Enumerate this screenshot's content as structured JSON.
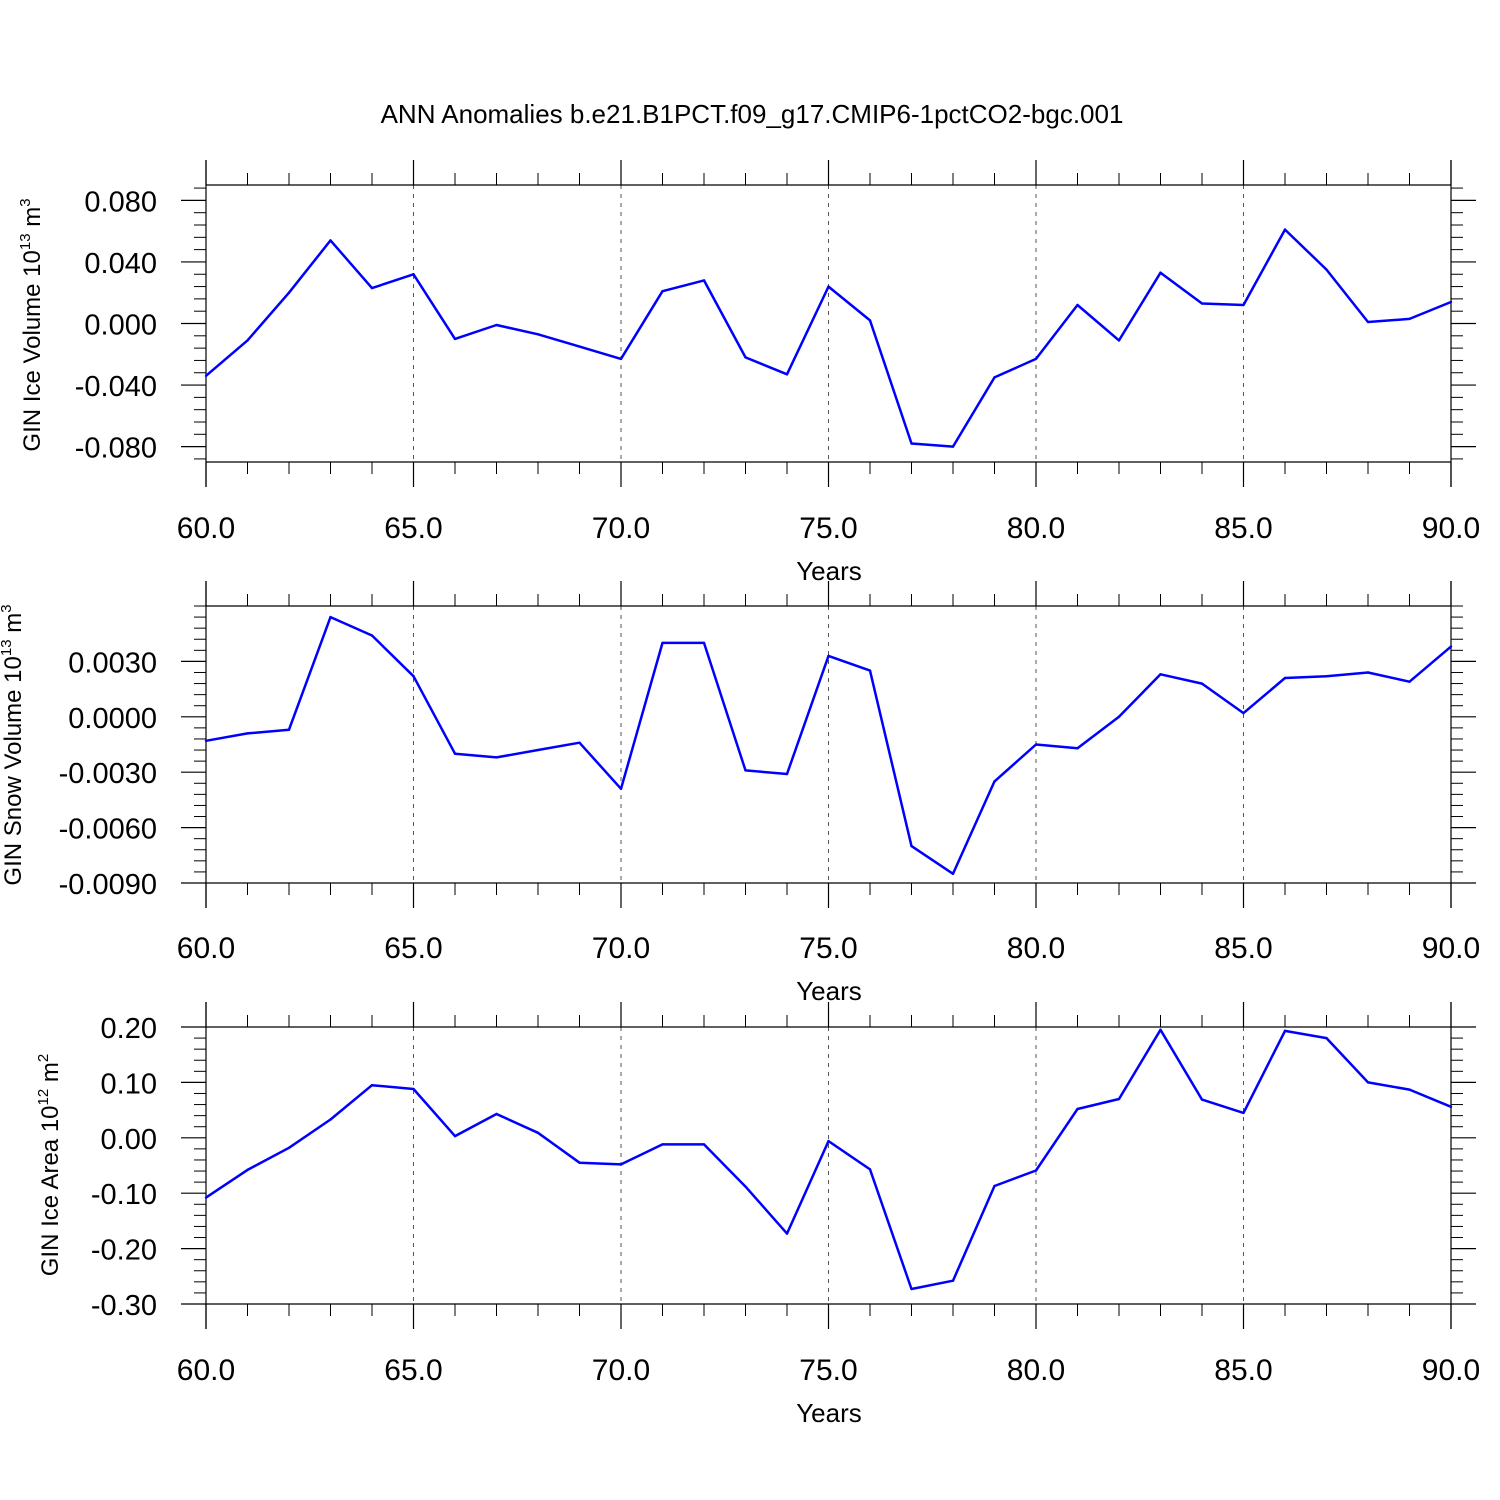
{
  "title": "ANN Anomalies b.e21.B1PCT.f09_g17.CMIP6-1pctCO2-bgc.001",
  "colors": {
    "series": "#0000ff",
    "axis": "#000000",
    "grid": "#555555"
  },
  "chart_data": [
    {
      "type": "line",
      "ylabel": {
        "main": "GIN Ice Volume 10",
        "exp": "13",
        "unit": " m",
        "unit_exp": "3"
      },
      "xlabel": "Years",
      "xlim": [
        60,
        90
      ],
      "ylim": [
        -0.09,
        0.09
      ],
      "xticks": [
        "60.0",
        "65.0",
        "70.0",
        "75.0",
        "80.0",
        "85.0",
        "90.0"
      ],
      "yticks": [
        -0.08,
        -0.04,
        0.0,
        0.04,
        0.08
      ],
      "ytick_labels": [
        "-0.080",
        "-0.040",
        "0.000",
        "0.040",
        "0.080"
      ],
      "x": [
        60,
        61,
        62,
        63,
        64,
        65,
        66,
        67,
        68,
        69,
        70,
        71,
        72,
        73,
        74,
        75,
        76,
        77,
        78,
        79,
        80,
        81,
        82,
        83,
        84,
        85,
        86,
        87,
        88,
        89,
        90
      ],
      "values": [
        -0.034,
        -0.011,
        0.02,
        0.054,
        0.023,
        0.032,
        -0.01,
        -0.001,
        -0.007,
        -0.015,
        -0.023,
        0.021,
        0.028,
        -0.022,
        -0.033,
        0.024,
        0.002,
        -0.078,
        -0.08,
        -0.035,
        -0.023,
        0.012,
        -0.011,
        0.033,
        0.013,
        0.012,
        0.061,
        0.035,
        0.001,
        0.003,
        0.014
      ],
      "grid": "dashed vertical at major x ticks"
    },
    {
      "type": "line",
      "ylabel": {
        "main": "GIN Snow Volume 10",
        "exp": "13",
        "unit": " m",
        "unit_exp": "3"
      },
      "xlabel": "Years",
      "xlim": [
        60,
        90
      ],
      "ylim": [
        -0.009,
        0.006
      ],
      "xticks": [
        "60.0",
        "65.0",
        "70.0",
        "75.0",
        "80.0",
        "85.0",
        "90.0"
      ],
      "yticks": [
        -0.009,
        -0.006,
        -0.003,
        0.0,
        0.003
      ],
      "ytick_labels": [
        "-0.0090",
        "-0.0060",
        "-0.0030",
        "0.0000",
        "0.0030"
      ],
      "x": [
        60,
        61,
        62,
        63,
        64,
        65,
        66,
        67,
        68,
        69,
        70,
        71,
        72,
        73,
        74,
        75,
        76,
        77,
        78,
        79,
        80,
        81,
        82,
        83,
        84,
        85,
        86,
        87,
        88,
        89,
        90
      ],
      "values": [
        -0.0013,
        -0.0009,
        -0.0007,
        0.0054,
        0.0044,
        0.0022,
        -0.002,
        -0.0022,
        -0.0018,
        -0.0014,
        -0.0039,
        0.004,
        0.004,
        -0.0029,
        -0.0031,
        0.0033,
        0.0025,
        -0.007,
        -0.0085,
        -0.0035,
        -0.0015,
        -0.0017,
        0.0,
        0.0023,
        0.0018,
        0.0002,
        0.0021,
        0.0022,
        0.0024,
        0.0019,
        0.0038
      ],
      "grid": "dashed vertical at major x ticks"
    },
    {
      "type": "line",
      "ylabel": {
        "main": "GIN Ice Area 10",
        "exp": "12",
        "unit": " m",
        "unit_exp": "2"
      },
      "xlabel": "Years",
      "xlim": [
        60,
        90
      ],
      "ylim": [
        -0.3,
        0.2
      ],
      "xticks": [
        "60.0",
        "65.0",
        "70.0",
        "75.0",
        "80.0",
        "85.0",
        "90.0"
      ],
      "yticks": [
        -0.3,
        -0.2,
        -0.1,
        0.0,
        0.1,
        0.2
      ],
      "ytick_labels": [
        "-0.30",
        "-0.20",
        "-0.10",
        "0.00",
        "0.10",
        "0.20"
      ],
      "x": [
        60,
        61,
        62,
        63,
        64,
        65,
        66,
        67,
        68,
        69,
        70,
        71,
        72,
        73,
        74,
        75,
        76,
        77,
        78,
        79,
        80,
        81,
        82,
        83,
        84,
        85,
        86,
        87,
        88,
        89,
        90
      ],
      "values": [
        -0.108,
        -0.058,
        -0.018,
        0.033,
        0.095,
        0.088,
        0.003,
        0.043,
        0.009,
        -0.045,
        -0.048,
        -0.012,
        -0.012,
        -0.088,
        -0.173,
        -0.006,
        -0.057,
        -0.273,
        -0.258,
        -0.087,
        -0.059,
        0.052,
        0.07,
        0.195,
        0.069,
        0.045,
        0.193,
        0.18,
        0.1,
        0.087,
        0.056
      ],
      "grid": "dashed vertical at major x ticks"
    }
  ]
}
